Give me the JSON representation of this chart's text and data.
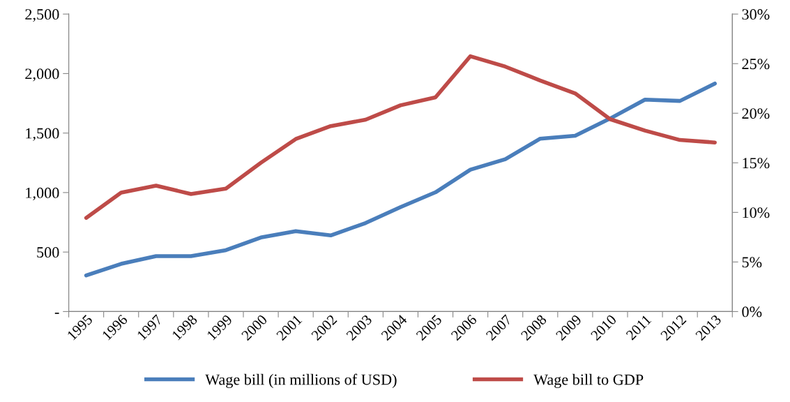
{
  "chart_data": {
    "type": "line",
    "categories": [
      "1995",
      "1996",
      "1997",
      "1998",
      "1999",
      "2000",
      "2001",
      "2002",
      "2003",
      "2004",
      "2005",
      "2006",
      "2007",
      "2008",
      "2009",
      "2010",
      "2011",
      "2012",
      "2013"
    ],
    "series": [
      {
        "name": "Wage bill (in millions of USD)",
        "color": "#4a7ebb",
        "values": [
          304,
          401,
          466,
          466,
          516,
          622,
          676,
          640,
          744,
          878,
          1002,
          1192,
          1280,
          1453,
          1477,
          1622,
          1781,
          1770,
          1916
        ]
      },
      {
        "name": "Wage bill to GDP",
        "color": "#be4b48",
        "axis": "y2",
        "values": [
          9.45,
          12.0,
          12.7,
          11.85,
          12.4,
          15.0,
          17.4,
          18.7,
          19.35,
          20.8,
          21.6,
          25.75,
          24.7,
          23.3,
          22.0,
          19.4,
          18.25,
          17.3,
          17.05
        ]
      }
    ],
    "ylim": [
      0,
      2500
    ],
    "yticks": [
      {
        "value": 0,
        "label": "-"
      },
      {
        "value": 500,
        "label": "500"
      },
      {
        "value": 1000,
        "label": "1,000"
      },
      {
        "value": 1500,
        "label": "1,500"
      },
      {
        "value": 2000,
        "label": "2,000"
      },
      {
        "value": 2500,
        "label": "2,500"
      }
    ],
    "y2lim": [
      0,
      30
    ],
    "y2ticks": [
      {
        "value": 0,
        "label": "0%"
      },
      {
        "value": 5,
        "label": "5%"
      },
      {
        "value": 10,
        "label": "10%"
      },
      {
        "value": 15,
        "label": "15%"
      },
      {
        "value": 20,
        "label": "20%"
      },
      {
        "value": 25,
        "label": "25%"
      },
      {
        "value": 30,
        "label": "30%"
      }
    ],
    "legend": "bottom",
    "grid": false,
    "marker": "none",
    "line_style": "solid"
  }
}
